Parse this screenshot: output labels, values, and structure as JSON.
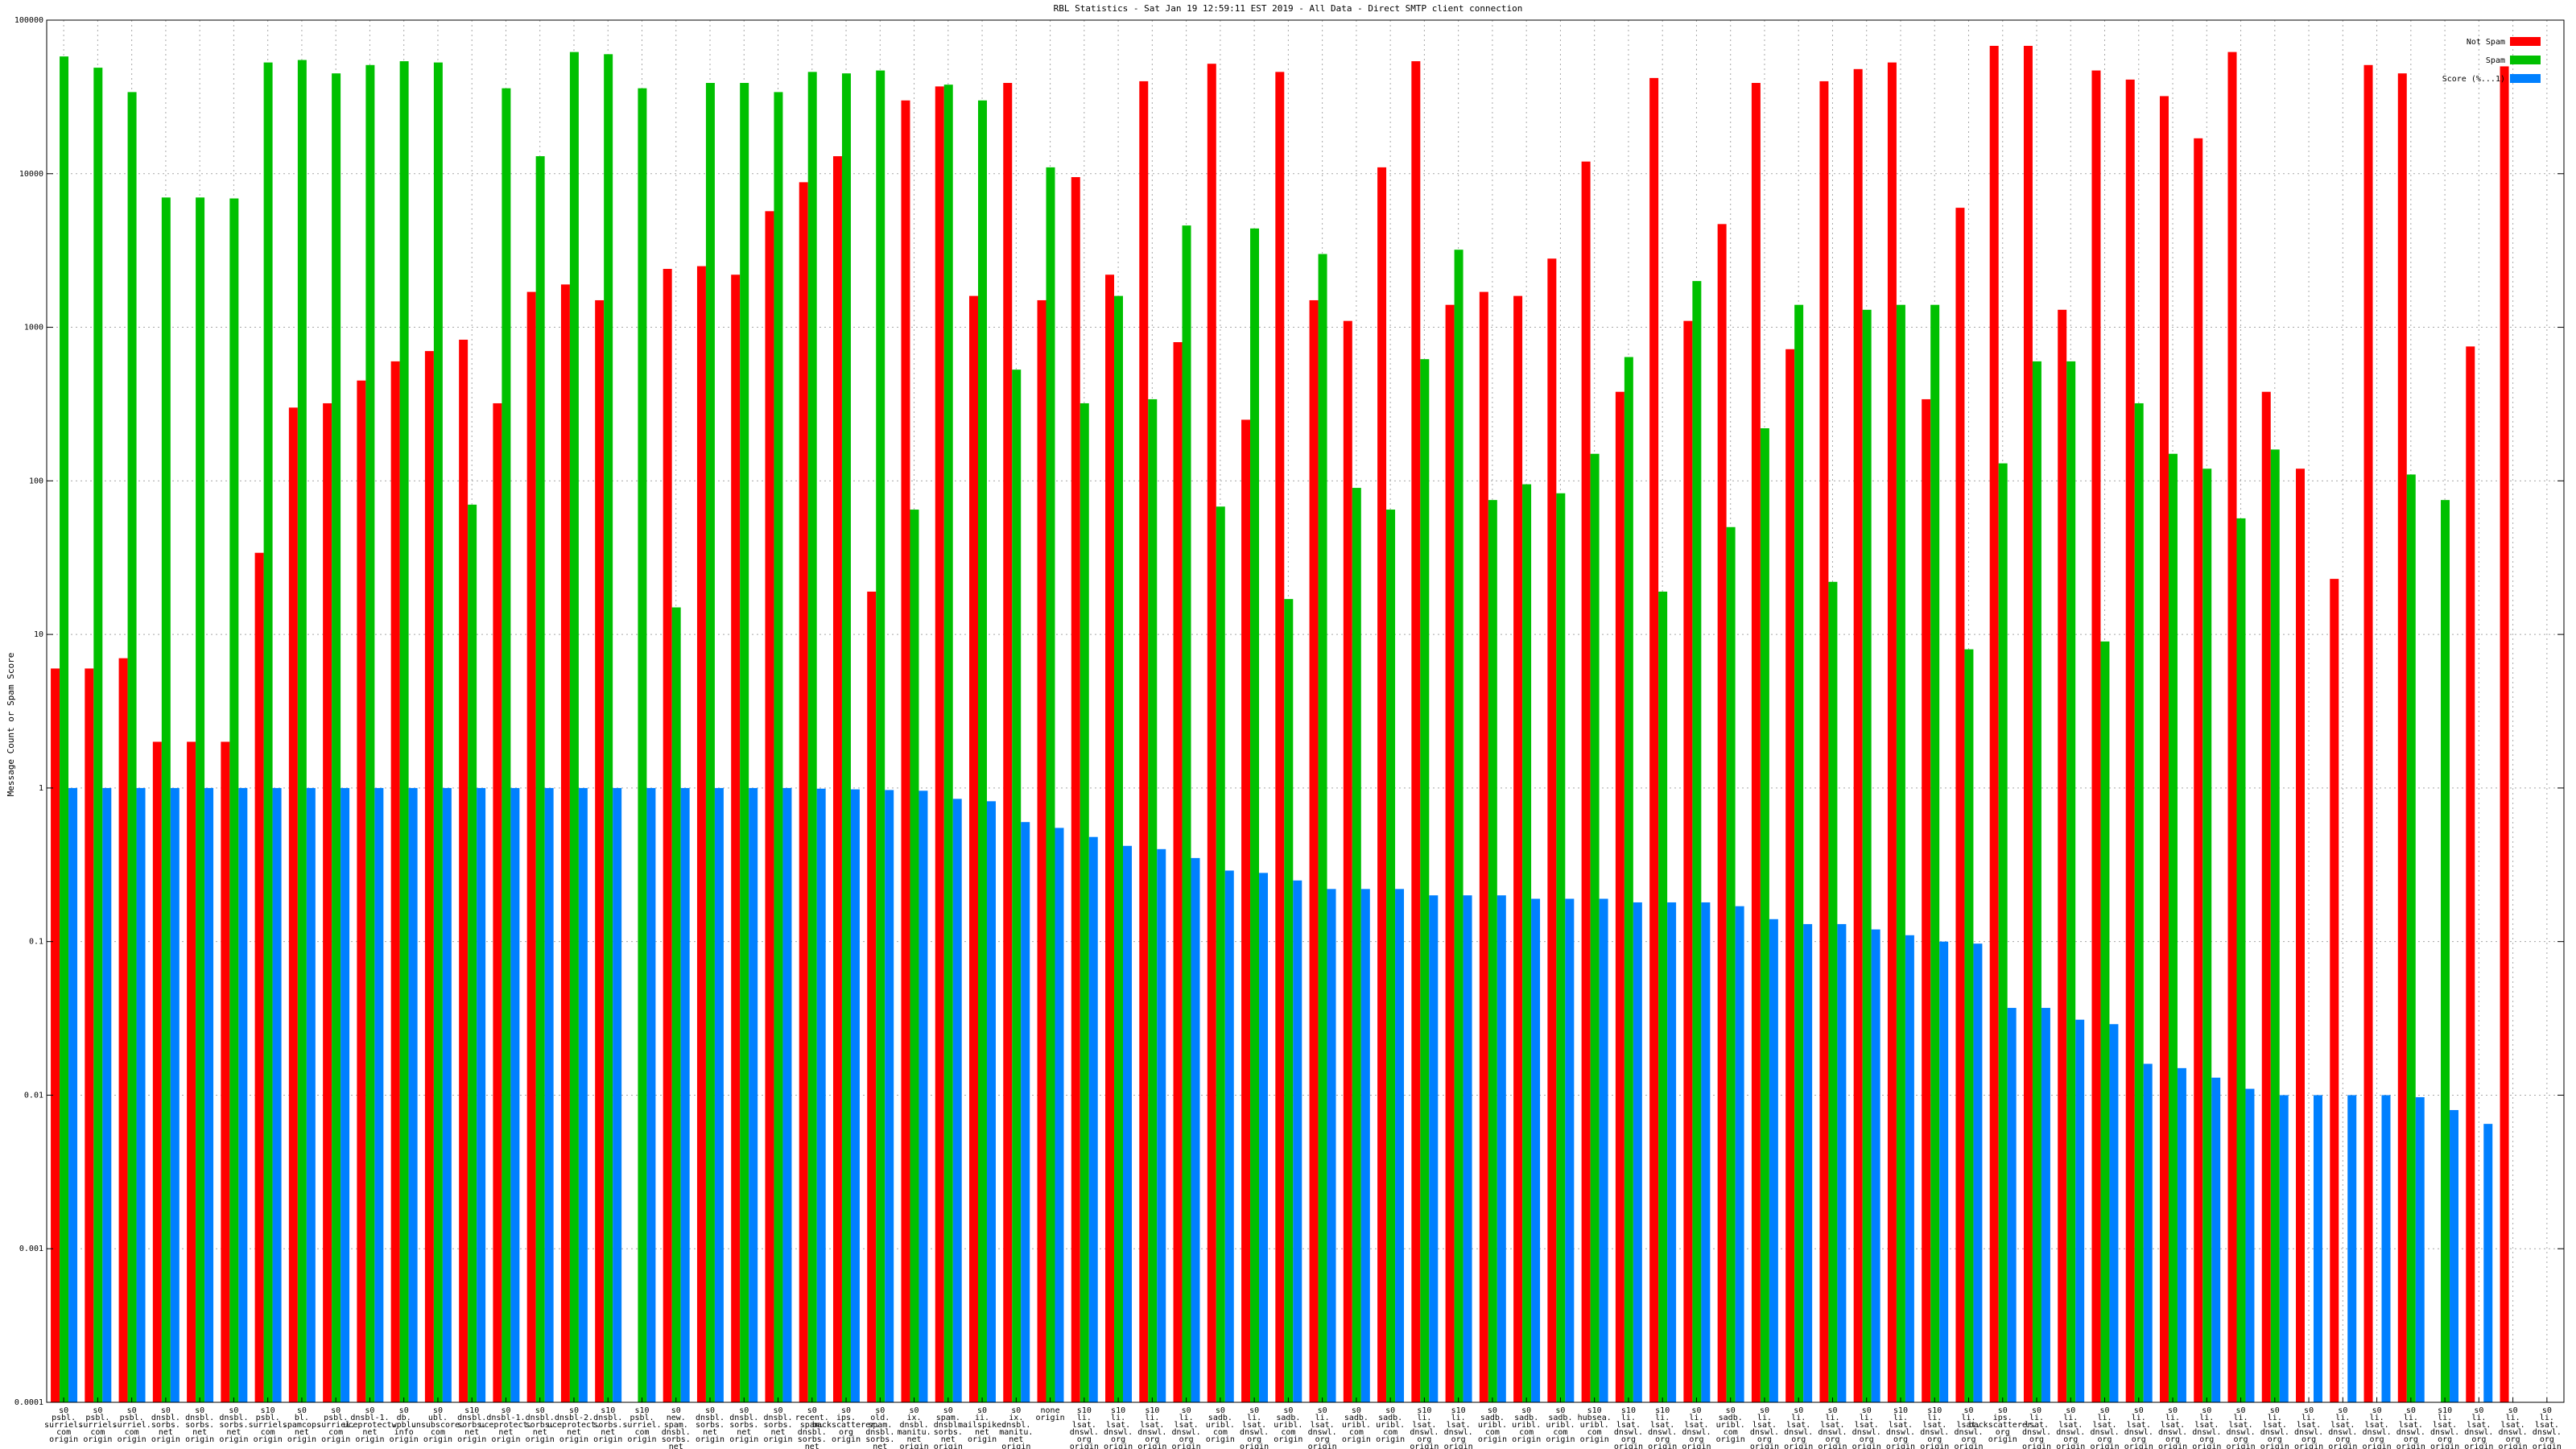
{
  "chart_data": {
    "type": "bar",
    "title": "RBL Statistics - Sat Jan 19 12:59:11 EST 2019 - All Data - Direct SMTP client connection",
    "xlabel": "",
    "ylabel": "Message Count or Spam Score",
    "yscale": "log",
    "ylim": [
      0.0001,
      100000
    ],
    "ytick_labels": [
      "0.0001",
      "0.001",
      "0.01",
      "0.1",
      "1",
      "10",
      "100",
      "1000",
      "10000",
      "100000"
    ],
    "grid": true,
    "legend_position": "top-right",
    "categories": [
      [
        "s0",
        "psbl.",
        "surriel.",
        "com",
        "origin"
      ],
      [
        "s0",
        "psbl.",
        "surriel.",
        "com",
        "origin"
      ],
      [
        "s0",
        "psbl.",
        "surriel.",
        "com",
        "origin"
      ],
      [
        "s0",
        "dnsbl.",
        "sorbs.",
        "net",
        "origin"
      ],
      [
        "s0",
        "dnsbl.",
        "sorbs.",
        "net",
        "origin"
      ],
      [
        "s0",
        "dnsbl.",
        "sorbs.",
        "net",
        "origin"
      ],
      [
        "s10",
        "psbl.",
        "surriel.",
        "com",
        "origin"
      ],
      [
        "s0",
        "bl.",
        "spamcop.",
        "net",
        "origin"
      ],
      [
        "s0",
        "psbl.",
        "surriel.",
        "com",
        "origin"
      ],
      [
        "s0",
        "dnsbl-1.",
        "uceprotect.",
        "net",
        "origin"
      ],
      [
        "s0",
        "db.",
        "wpbl.",
        "info",
        "origin"
      ],
      [
        "s0",
        "ubl.",
        "unsubscore.",
        "com",
        "origin"
      ],
      [
        "s10",
        "dnsbl.",
        "sorbs.",
        "net",
        "origin"
      ],
      [
        "s0",
        "dnsbl-1.",
        "uceprotect.",
        "net",
        "origin"
      ],
      [
        "s0",
        "dnsbl.",
        "sorbs.",
        "net",
        "origin"
      ],
      [
        "s0",
        "dnsbl-2.",
        "uceprotect.",
        "net",
        "origin"
      ],
      [
        "s10",
        "dnsbl.",
        "sorbs.",
        "net",
        "origin"
      ],
      [
        "s10",
        "psbl.",
        "surriel.",
        "com",
        "origin"
      ],
      [
        "s0",
        "new.",
        "spam.",
        "dnsbl.",
        "sorbs.",
        "net",
        "origin"
      ],
      [
        "s0",
        "dnsbl.",
        "sorbs.",
        "net",
        "origin"
      ],
      [
        "s0",
        "dnsbl.",
        "sorbs.",
        "net",
        "origin"
      ],
      [
        "s0",
        "dnsbl.",
        "sorbs.",
        "net",
        "origin"
      ],
      [
        "s0",
        "recent.",
        "spam.",
        "dnsbl.",
        "sorbs.",
        "net",
        "origin"
      ],
      [
        "s0",
        "ips.",
        "backscatterer.",
        "org",
        "origin"
      ],
      [
        "s0",
        "old.",
        "spam.",
        "dnsbl.",
        "sorbs.",
        "net",
        "origin"
      ],
      [
        "s0",
        "ix.",
        "dnsbl.",
        "manitu.",
        "net",
        "origin"
      ],
      [
        "s0",
        "spam.",
        "dnsbl.",
        "sorbs.",
        "net",
        "origin"
      ],
      [
        "s0",
        "ii.",
        "mailspike.",
        "net",
        "origin"
      ],
      [
        "s0",
        "ix.",
        "dnsbl.",
        "manitu.",
        "net",
        "origin"
      ],
      [
        "none",
        "origin"
      ],
      [
        "s10",
        "li.",
        "lsat.",
        "dnswl.",
        "org",
        "origin"
      ],
      [
        "s10",
        "li.",
        "lsat.",
        "dnswl.",
        "org",
        "origin"
      ],
      [
        "s10",
        "li.",
        "lsat.",
        "dnswl.",
        "org",
        "origin"
      ],
      [
        "s0",
        "li.",
        "lsat.",
        "dnswl.",
        "org",
        "origin"
      ],
      [
        "s0",
        "sadb.",
        "uribl.",
        "com",
        "origin"
      ],
      [
        "s0",
        "li.",
        "lsat.",
        "dnswl.",
        "org",
        "origin"
      ],
      [
        "s0",
        "sadb.",
        "uribl.",
        "com",
        "origin"
      ],
      [
        "s0",
        "li.",
        "lsat.",
        "dnswl.",
        "org",
        "origin"
      ],
      [
        "s0",
        "sadb.",
        "uribl.",
        "com",
        "origin"
      ],
      [
        "s0",
        "sadb.",
        "uribl.",
        "com",
        "origin"
      ],
      [
        "s10",
        "li.",
        "lsat.",
        "dnswl.",
        "org",
        "origin"
      ],
      [
        "s10",
        "li.",
        "lsat.",
        "dnswl.",
        "org",
        "origin"
      ],
      [
        "s0",
        "sadb.",
        "uribl.",
        "com",
        "origin"
      ],
      [
        "s0",
        "sadb.",
        "uribl.",
        "com",
        "origin"
      ],
      [
        "s0",
        "sadb.",
        "uribl.",
        "com",
        "origin"
      ],
      [
        "s10",
        "hubsea.",
        "uribl.",
        "com",
        "origin"
      ],
      [
        "s10",
        "li.",
        "lsat.",
        "dnswl.",
        "org",
        "origin"
      ],
      [
        "s10",
        "li.",
        "lsat.",
        "dnswl.",
        "org",
        "origin"
      ],
      [
        "s0",
        "li.",
        "lsat.",
        "dnswl.",
        "org",
        "origin"
      ],
      [
        "s0",
        "sadb.",
        "uribl.",
        "com",
        "origin"
      ],
      [
        "s0",
        "li.",
        "lsat.",
        "dnswl.",
        "org",
        "origin"
      ],
      [
        "s0",
        "li.",
        "lsat.",
        "dnswl.",
        "org",
        "origin"
      ],
      [
        "s0",
        "li.",
        "lsat.",
        "dnswl.",
        "org",
        "origin"
      ],
      [
        "s0",
        "li.",
        "lsat.",
        "dnswl.",
        "org",
        "origin"
      ],
      [
        "s10",
        "li.",
        "lsat.",
        "dnswl.",
        "org",
        "origin"
      ],
      [
        "s10",
        "li.",
        "lsat.",
        "dnswl.",
        "org",
        "origin"
      ],
      [
        "s0",
        "li.",
        "lsat.",
        "dnswl.",
        "org",
        "origin"
      ],
      [
        "s0",
        "ips.",
        "backscatterer.",
        "org",
        "origin"
      ],
      [
        "s0",
        "li.",
        "lsat.",
        "dnswl.",
        "org",
        "origin"
      ],
      [
        "s0",
        "li.",
        "lsat.",
        "dnswl.",
        "org",
        "origin"
      ],
      [
        "s0",
        "li.",
        "lsat.",
        "dnswl.",
        "org",
        "origin"
      ],
      [
        "s0",
        "li.",
        "lsat.",
        "dnswl.",
        "org",
        "origin"
      ],
      [
        "s0",
        "li.",
        "lsat.",
        "dnswl.",
        "org",
        "origin"
      ],
      [
        "s0",
        "li.",
        "lsat.",
        "dnswl.",
        "org",
        "origin"
      ],
      [
        "s0",
        "li.",
        "lsat.",
        "dnswl.",
        "org",
        "origin"
      ],
      [
        "s0",
        "li.",
        "lsat.",
        "dnswl.",
        "org",
        "origin"
      ],
      [
        "s0",
        "li.",
        "lsat.",
        "dnswl.",
        "org",
        "origin"
      ],
      [
        "s0",
        "li.",
        "lsat.",
        "dnswl.",
        "org",
        "origin"
      ],
      [
        "s0",
        "li.",
        "lsat.",
        "dnswl.",
        "org",
        "origin"
      ],
      [
        "s0",
        "li.",
        "lsat.",
        "dnswl.",
        "org",
        "origin"
      ],
      [
        "s10",
        "li.",
        "lsat.",
        "dnswl.",
        "org",
        "origin"
      ],
      [
        "s0",
        "li.",
        "lsat.",
        "dnswl.",
        "org",
        "origin"
      ],
      [
        "s0",
        "li.",
        "lsat.",
        "dnswl.",
        "org",
        "origin"
      ],
      [
        "s0",
        "li.",
        "lsat.",
        "dnswl.",
        "org",
        "origin"
      ]
    ],
    "series": [
      {
        "name": "Not Spam",
        "values": [
          6,
          6,
          7,
          2,
          2,
          2,
          34,
          300,
          320,
          450,
          600,
          700,
          830,
          320,
          1700,
          1900,
          1500,
          0,
          2400,
          2500,
          2200,
          5700,
          8800,
          13000,
          19,
          30000,
          37000,
          1600,
          39000,
          1500,
          9500,
          2200,
          40000,
          800,
          52000,
          250,
          46000,
          1500,
          1100,
          11000,
          54000,
          1400,
          1700,
          1600,
          2800,
          12000,
          380,
          42000,
          1100,
          4700,
          39000,
          720,
          40000,
          48000,
          53000,
          340,
          6000,
          68000,
          68000,
          1300,
          47000,
          41000,
          32000,
          17000,
          62000,
          380,
          120,
          23,
          51000,
          45000,
          0,
          750,
          50000,
          0
        ],
        "color": "#ff0000"
      },
      {
        "name": "Spam",
        "values": [
          58000,
          49000,
          34000,
          7000,
          7000,
          6900,
          53000,
          55000,
          45000,
          51000,
          54000,
          53000,
          70,
          36000,
          13000,
          62000,
          60000,
          36000,
          15,
          39000,
          39000,
          34000,
          46000,
          45000,
          47000,
          65,
          38000,
          30000,
          530,
          11000,
          320,
          1600,
          340,
          4600,
          68,
          4400,
          17,
          3000,
          90,
          65,
          620,
          3200,
          75,
          95,
          83,
          150,
          640,
          19,
          2000,
          50,
          220,
          1400,
          22,
          1300,
          1400,
          1400,
          8,
          130,
          600,
          600,
          9,
          320,
          150,
          120,
          57,
          160,
          0,
          0,
          0,
          110,
          75,
          0,
          0,
          0
        ],
        "color": "#00c000"
      },
      {
        "name": "Score (%...1)",
        "values": [
          1,
          1,
          1,
          1,
          1,
          1,
          1,
          1,
          1,
          1,
          1,
          1,
          1,
          1,
          1,
          1,
          1,
          1,
          1,
          1,
          1,
          1,
          0.99,
          0.98,
          0.97,
          0.96,
          0.85,
          0.82,
          0.6,
          0.55,
          0.48,
          0.42,
          0.4,
          0.35,
          0.29,
          0.28,
          0.25,
          0.22,
          0.22,
          0.22,
          0.2,
          0.2,
          0.2,
          0.19,
          0.19,
          0.19,
          0.18,
          0.18,
          0.18,
          0.17,
          0.14,
          0.13,
          0.13,
          0.12,
          0.11,
          0.1,
          0.097,
          0.037,
          0.037,
          0.031,
          0.029,
          0.016,
          0.015,
          0.013,
          0.011,
          0.01,
          0.01,
          0.01,
          0.01,
          0.0097,
          0.008,
          0.0065,
          0,
          0
        ],
        "color": "#0080ff"
      }
    ]
  }
}
